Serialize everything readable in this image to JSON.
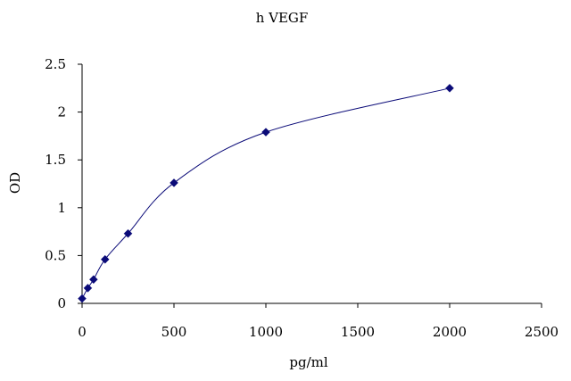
{
  "chart_data": {
    "type": "line",
    "title": "h VEGF",
    "xlabel": "pg/ml",
    "ylabel": "OD",
    "xlim": [
      0,
      2500
    ],
    "ylim": [
      0,
      2.5
    ],
    "x_ticks": [
      0,
      500,
      1000,
      1500,
      2000,
      2500
    ],
    "y_ticks": [
      0,
      0.5,
      1,
      1.5,
      2,
      2.5
    ],
    "x_tick_labels": [
      "0",
      "500",
      "1000",
      "1500",
      "2000",
      "2500"
    ],
    "y_tick_labels": [
      "0",
      "0.5",
      "1",
      "1.5",
      "2",
      "2.5"
    ],
    "grid": false,
    "series": [
      {
        "color": "#0b0b78",
        "marker": "diamond",
        "smooth": true,
        "x": [
          0,
          31.25,
          62.5,
          125,
          250,
          500,
          1000,
          2000
        ],
        "y": [
          0.05,
          0.16,
          0.25,
          0.46,
          0.73,
          1.26,
          1.79,
          2.25
        ]
      }
    ]
  }
}
